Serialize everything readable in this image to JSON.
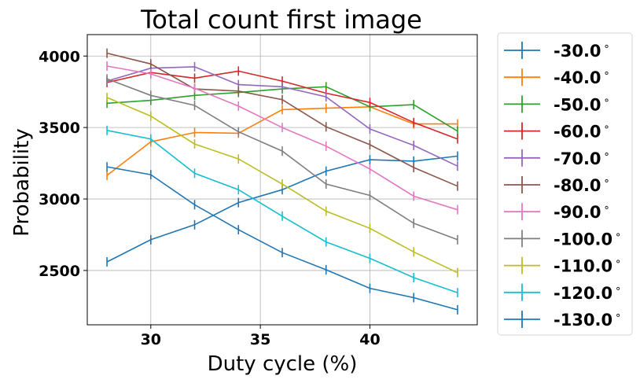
{
  "chart_data": {
    "type": "line",
    "title": "Total count first image",
    "xlabel": "Duty cycle (%)",
    "ylabel": "Probability",
    "xlim": [
      27.1,
      44.9
    ],
    "ylim": [
      2120,
      4150
    ],
    "xticks": [
      30,
      35,
      40
    ],
    "yticks": [
      2500,
      3000,
      3500,
      4000
    ],
    "grid": true,
    "legend_position": "outside-right",
    "x": [
      28,
      30,
      32,
      34,
      36,
      38,
      40,
      42,
      44
    ],
    "series": [
      {
        "name": "-30.0$^\\circ$",
        "label": "-30.0",
        "color": "#1f77b4",
        "values": [
          2560,
          2715,
          2820,
          2975,
          3065,
          3195,
          3275,
          3265,
          3300
        ]
      },
      {
        "name": "-40.0$^\\circ$",
        "label": "-40.0",
        "color": "#ff7f0e",
        "values": [
          3165,
          3400,
          3465,
          3460,
          3625,
          3635,
          3645,
          3525,
          3525
        ]
      },
      {
        "name": "-50.0$^\\circ$",
        "label": "-50.0",
        "color": "#2ca02c",
        "values": [
          3670,
          3690,
          3725,
          3745,
          3770,
          3785,
          3645,
          3660,
          3475
        ]
      },
      {
        "name": "-60.0$^\\circ$",
        "label": "-60.0",
        "color": "#d62728",
        "values": [
          3815,
          3885,
          3845,
          3895,
          3825,
          3740,
          3675,
          3535,
          3420
        ]
      },
      {
        "name": "-70.0$^\\circ$",
        "label": "-70.0",
        "color": "#9467bd",
        "values": [
          3825,
          3915,
          3925,
          3800,
          3785,
          3715,
          3490,
          3375,
          3230
        ]
      },
      {
        "name": "-80.0$^\\circ$",
        "label": "-80.0",
        "color": "#8c564b",
        "values": [
          4020,
          3945,
          3770,
          3755,
          3695,
          3505,
          3380,
          3220,
          3090
        ]
      },
      {
        "name": "-90.0$^\\circ$",
        "label": "-90.0",
        "color": "#e377c2",
        "values": [
          3930,
          3875,
          3775,
          3650,
          3500,
          3370,
          3210,
          3020,
          2925
        ]
      },
      {
        "name": "-100.0$^\\circ$",
        "label": "-100.0",
        "color": "#7f7f7f",
        "values": [
          3840,
          3725,
          3655,
          3470,
          3335,
          3105,
          3025,
          2830,
          2715
        ]
      },
      {
        "name": "-110.0$^\\circ$",
        "label": "-110.0",
        "color": "#bcbd22",
        "values": [
          3710,
          3580,
          3385,
          3280,
          3105,
          2915,
          2795,
          2630,
          2485
        ]
      },
      {
        "name": "-120.0$^\\circ$",
        "label": "-120.0",
        "color": "#17becf",
        "values": [
          3480,
          3420,
          3180,
          3065,
          2880,
          2700,
          2585,
          2450,
          2345
        ]
      },
      {
        "name": "-130.0$^\\circ$",
        "label": "-130.0",
        "color": "#1f77b4",
        "values": [
          3225,
          3170,
          2960,
          2785,
          2625,
          2505,
          2375,
          2310,
          2225
        ]
      }
    ]
  }
}
